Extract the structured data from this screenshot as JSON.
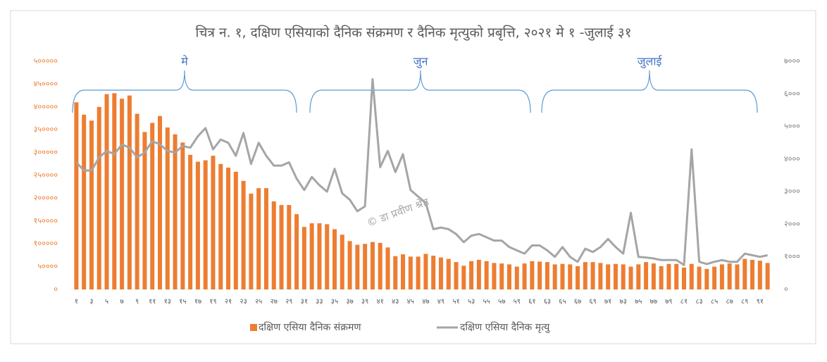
{
  "chart_data": {
    "type": "bar-line",
    "title": "चित्र न. १, दक्षिण एसियाको दैनिक संक्रमण र दैनिक मृत्युको प्रबृत्ति, २०२१ मे १ -जुलाई ३१",
    "annotations": [
      "मे",
      "जुन",
      "जुलाई"
    ],
    "watermark": "© डा प्रवीण श्रेष्ठ",
    "categories": [
      "१",
      null,
      "३",
      null,
      "५",
      null,
      "७",
      null,
      "९",
      null,
      "११",
      null,
      "१३",
      null,
      "१५",
      null,
      "१७",
      null,
      "१९",
      null,
      "२१",
      null,
      "२३",
      null,
      "२५",
      null,
      "२७",
      null,
      "२९",
      null,
      "३१",
      null,
      "३३",
      null,
      "३५",
      null,
      "३७",
      null,
      "३९",
      null,
      "४१",
      null,
      "४३",
      null,
      "४५",
      null,
      "४७",
      null,
      "४९",
      null,
      "५१",
      null,
      "५३",
      null,
      "५५",
      null,
      "५७",
      null,
      "५९",
      null,
      "६१",
      null,
      "६३",
      null,
      "६५",
      null,
      "६७",
      null,
      "६९",
      null,
      "७१",
      null,
      "७३",
      null,
      "७५",
      null,
      "७७",
      null,
      "७९",
      null,
      "८१",
      null,
      "८३",
      null,
      "८५",
      null,
      "८७",
      null,
      "८९",
      null,
      "९१",
      null
    ],
    "series": [
      {
        "name": "दक्षिण एसिया  दैनिक संक्रमण",
        "type": "bar",
        "color": "#ed7d31",
        "axis": "y",
        "values": [
          410000,
          383000,
          370000,
          400000,
          428000,
          430000,
          418000,
          425000,
          385000,
          345000,
          365000,
          380000,
          355000,
          340000,
          322000,
          295000,
          280000,
          283000,
          293000,
          275000,
          267000,
          258000,
          238000,
          210000,
          222000,
          222000,
          193000,
          185000,
          185000,
          165000,
          137000,
          145000,
          145000,
          143000,
          132000,
          120000,
          106000,
          98000,
          100000,
          104000,
          102000,
          92000,
          73000,
          77000,
          72000,
          72000,
          78000,
          74000,
          70000,
          67000,
          60000,
          52000,
          62000,
          65000,
          62000,
          58000,
          57000,
          55000,
          50000,
          57000,
          62000,
          61000,
          60000,
          55000,
          56000,
          55000,
          51000,
          60000,
          60000,
          58000,
          55000,
          56000,
          55000,
          50000,
          55000,
          60000,
          57000,
          51000,
          56000,
          56000,
          48000,
          56000,
          50000,
          45000,
          50000,
          55000,
          57000,
          55000,
          67000,
          65000,
          63000,
          58000
        ]
      },
      {
        "name": "दक्षिण एसिया  दैनिक मृत्यु",
        "type": "line",
        "color": "#a5a5a5",
        "axis": "y2",
        "values": [
          3900,
          3650,
          3650,
          4050,
          4250,
          4150,
          4450,
          4350,
          4050,
          4200,
          4550,
          4450,
          4250,
          4200,
          4400,
          4350,
          4700,
          4950,
          4300,
          4600,
          4500,
          4100,
          4800,
          3850,
          4500,
          4100,
          3800,
          3800,
          3900,
          3400,
          3050,
          3450,
          3200,
          3000,
          3700,
          2950,
          2750,
          2400,
          2550,
          6450,
          3750,
          4250,
          3600,
          4150,
          3050,
          2850,
          2650,
          1850,
          1900,
          1850,
          1700,
          1450,
          1650,
          1700,
          1600,
          1500,
          1500,
          1300,
          1200,
          1100,
          1350,
          1350,
          1200,
          1000,
          1300,
          1000,
          850,
          1250,
          1150,
          1300,
          1550,
          1300,
          1100,
          2350,
          1000,
          980,
          950,
          900,
          900,
          900,
          750,
          4300,
          850,
          780,
          850,
          900,
          850,
          850,
          1100,
          1050,
          1000,
          1050
        ]
      }
    ],
    "ylim": [
      0,
      500000
    ],
    "yticks": [
      {
        "value": 0,
        "label": "०"
      },
      {
        "value": 50000,
        "label": "५००००"
      },
      {
        "value": 100000,
        "label": "१०००००"
      },
      {
        "value": 150000,
        "label": "१५००००"
      },
      {
        "value": 200000,
        "label": "२०००००"
      },
      {
        "value": 250000,
        "label": "२५००००"
      },
      {
        "value": 300000,
        "label": "३०००००"
      },
      {
        "value": 350000,
        "label": "३५००००"
      },
      {
        "value": 400000,
        "label": "४०००००"
      },
      {
        "value": 450000,
        "label": "४५००००"
      },
      {
        "value": 500000,
        "label": "५०००००"
      }
    ],
    "y2lim": [
      0,
      7000
    ],
    "y2ticks": [
      {
        "value": 0,
        "label": "०"
      },
      {
        "value": 1000,
        "label": "१०००"
      },
      {
        "value": 2000,
        "label": "२०००"
      },
      {
        "value": 3000,
        "label": "३०००"
      },
      {
        "value": 4000,
        "label": "४०००"
      },
      {
        "value": 5000,
        "label": "५०००"
      },
      {
        "value": 6000,
        "label": "६०००"
      },
      {
        "value": 7000,
        "label": "७०००"
      }
    ],
    "legend": "bottom"
  }
}
